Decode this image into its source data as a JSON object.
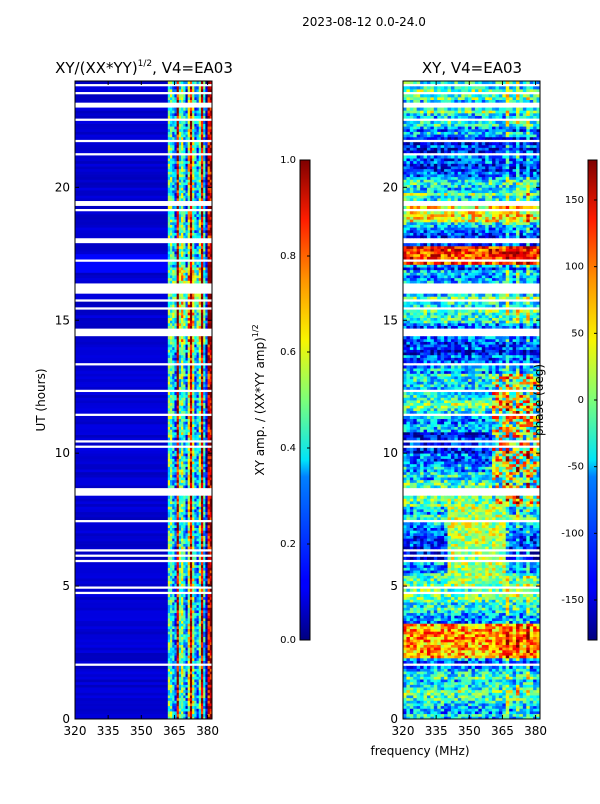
{
  "figure": {
    "suptitle": "2023-08-12 0.0-24.0"
  },
  "chart_data": [
    {
      "type": "heatmap",
      "title_main": "XY/(XX*YY)",
      "title_exp": "1/2",
      "title_tail": ", V4=EA03",
      "xlabel": "",
      "ylabel": "UT (hours)",
      "xlim": [
        320,
        382
      ],
      "ylim": [
        0,
        24
      ],
      "x_ticks": [
        320,
        335,
        350,
        365,
        380
      ],
      "y_ticks": [
        0,
        5,
        10,
        15,
        20
      ],
      "colorbar": {
        "label_main": "XY amp. / (XX*YY amp)",
        "label_exp": "1/2",
        "range": [
          0.0,
          1.0
        ],
        "ticks": [
          "0.0",
          "0.2",
          "0.4",
          "0.6",
          "0.8",
          "1.0"
        ],
        "colormap": "jet"
      }
    },
    {
      "type": "heatmap",
      "title": "XY, V4=EA03",
      "xlabel": "frequency (MHz)",
      "ylabel": "",
      "xlim": [
        320,
        382
      ],
      "ylim": [
        0,
        24
      ],
      "x_ticks": [
        320,
        335,
        350,
        365,
        380
      ],
      "y_ticks": [
        0,
        5,
        10,
        15,
        20
      ],
      "colorbar": {
        "label": "phase (deg)",
        "range": [
          -180,
          180
        ],
        "ticks": [
          "-150",
          "-100",
          "-50",
          "0",
          "50",
          "100",
          "150"
        ],
        "colormap": "jet"
      }
    }
  ]
}
